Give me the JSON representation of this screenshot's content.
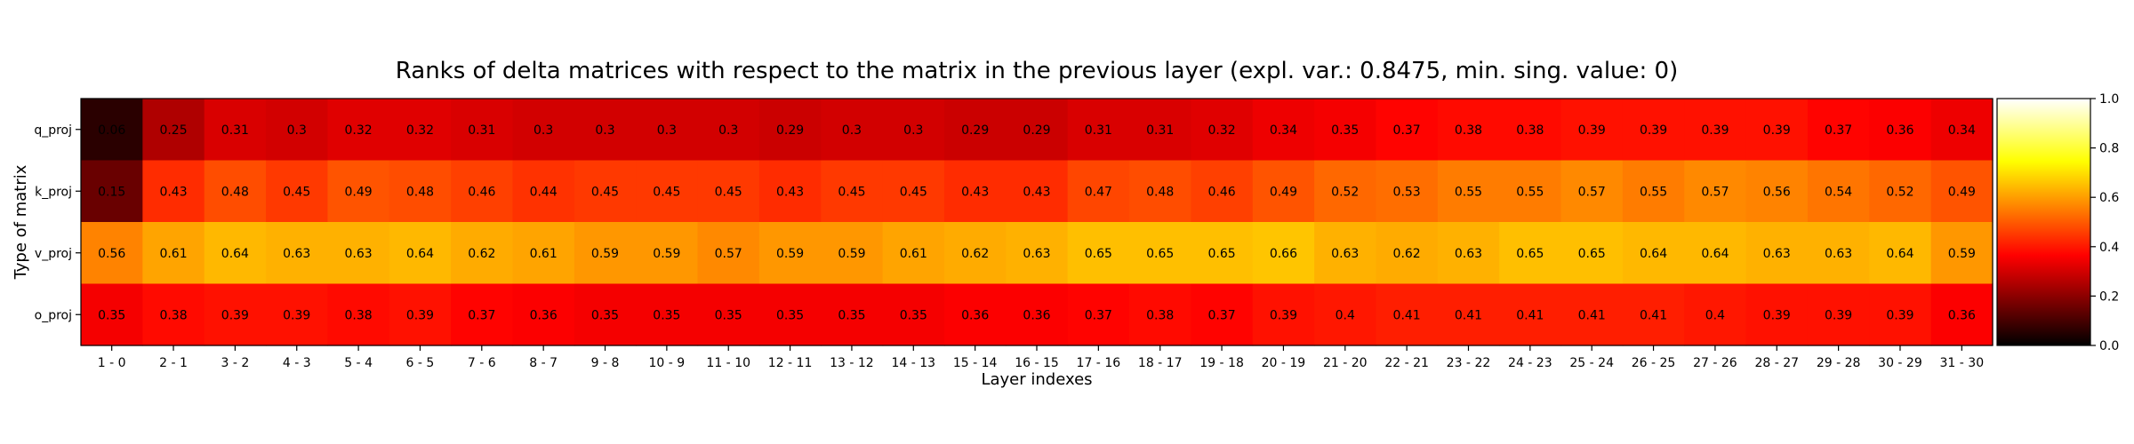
{
  "chart_data": {
    "type": "heatmap",
    "title": "Ranks of delta matrices with respect to the matrix in the previous layer (expl. var.: 0.8475, min. sing. value: 0)",
    "xlabel": "Layer indexes",
    "ylabel": "Type of matrix",
    "x_categories": [
      "1 - 0",
      "2 - 1",
      "3 - 2",
      "4 - 3",
      "5 - 4",
      "6 - 5",
      "7 - 6",
      "8 - 7",
      "9 - 8",
      "10 - 9",
      "11 - 10",
      "12 - 11",
      "13 - 12",
      "14 - 13",
      "15 - 14",
      "16 - 15",
      "17 - 16",
      "18 - 17",
      "19 - 18",
      "20 - 19",
      "21 - 20",
      "22 - 21",
      "23 - 22",
      "24 - 23",
      "25 - 24",
      "26 - 25",
      "27 - 26",
      "28 - 27",
      "29 - 28",
      "30 - 29",
      "31 - 30"
    ],
    "y_categories": [
      "q_proj",
      "k_proj",
      "v_proj",
      "o_proj"
    ],
    "values": [
      [
        0.06,
        0.25,
        0.31,
        0.3,
        0.32,
        0.32,
        0.31,
        0.3,
        0.3,
        0.3,
        0.3,
        0.29,
        0.3,
        0.3,
        0.29,
        0.29,
        0.31,
        0.31,
        0.32,
        0.34,
        0.35,
        0.37,
        0.38,
        0.38,
        0.39,
        0.39,
        0.39,
        0.39,
        0.37,
        0.36,
        0.34
      ],
      [
        0.15,
        0.43,
        0.48,
        0.45,
        0.49,
        0.48,
        0.46,
        0.44,
        0.45,
        0.45,
        0.45,
        0.43,
        0.45,
        0.45,
        0.43,
        0.43,
        0.47,
        0.48,
        0.46,
        0.49,
        0.52,
        0.53,
        0.55,
        0.55,
        0.57,
        0.55,
        0.57,
        0.56,
        0.54,
        0.52,
        0.49
      ],
      [
        0.56,
        0.61,
        0.64,
        0.63,
        0.63,
        0.64,
        0.62,
        0.61,
        0.59,
        0.59,
        0.57,
        0.59,
        0.59,
        0.61,
        0.62,
        0.63,
        0.65,
        0.65,
        0.65,
        0.66,
        0.63,
        0.62,
        0.63,
        0.65,
        0.65,
        0.64,
        0.64,
        0.63,
        0.63,
        0.64,
        0.59
      ],
      [
        0.35,
        0.38,
        0.39,
        0.39,
        0.38,
        0.39,
        0.37,
        0.36,
        0.35,
        0.35,
        0.35,
        0.35,
        0.35,
        0.35,
        0.36,
        0.36,
        0.37,
        0.38,
        0.37,
        0.39,
        0.4,
        0.41,
        0.41,
        0.41,
        0.41,
        0.41,
        0.4,
        0.39,
        0.39,
        0.39,
        0.36
      ]
    ],
    "colormap": "hot",
    "vmin": 0,
    "vmax": 1,
    "colorbar_ticks": [
      "0.0",
      "0.2",
      "0.4",
      "0.6",
      "0.8",
      "1.0"
    ],
    "colorbar_tick_values": [
      0,
      0.2,
      0.4,
      0.6,
      0.8,
      1.0
    ],
    "grid": false
  }
}
